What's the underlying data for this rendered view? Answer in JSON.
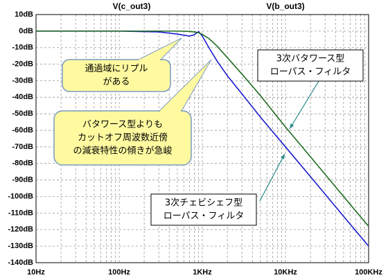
{
  "chart_data": {
    "type": "line",
    "xscale": "log",
    "grid": true,
    "x": [
      10,
      100,
      300,
      500,
      700,
      800,
      900,
      1000,
      1200,
      1500,
      2000,
      3000,
      5000,
      10000,
      20000,
      50000,
      100000
    ],
    "series": [
      {
        "name": "V(c_out3)",
        "color": "#1a1ad0",
        "values": [
          0,
          0,
          -0.5,
          -1.8,
          -3,
          -2.2,
          -0.3,
          -3,
          -10,
          -18,
          -27,
          -38,
          -52,
          -70,
          -88,
          -112,
          -130
        ]
      },
      {
        "name": "V(b_out3)",
        "color": "#1f6b1f",
        "values": [
          0,
          0,
          0,
          0,
          -0.2,
          -0.5,
          -1,
          -2,
          -4.5,
          -9,
          -16,
          -26,
          -39,
          -58,
          -76,
          -100,
          -118
        ]
      }
    ],
    "xlim": [
      10,
      100000
    ],
    "xticks": [
      {
        "value": 10,
        "label": "10Hz"
      },
      {
        "value": 100,
        "label": "100Hz"
      },
      {
        "value": 1000,
        "label": "1KHz"
      },
      {
        "value": 10000,
        "label": "10KHz"
      },
      {
        "value": 100000,
        "label": "100KHz"
      }
    ],
    "ylim": [
      -140,
      10
    ],
    "yticks": [
      {
        "value": 10,
        "label": "10dB"
      },
      {
        "value": 0,
        "label": "0dB"
      },
      {
        "value": -10,
        "label": "-10dB"
      },
      {
        "value": -20,
        "label": "-20dB"
      },
      {
        "value": -30,
        "label": "-30dB"
      },
      {
        "value": -40,
        "label": "-40dB"
      },
      {
        "value": -50,
        "label": "-50dB"
      },
      {
        "value": -60,
        "label": "-60dB"
      },
      {
        "value": -70,
        "label": "-70dB"
      },
      {
        "value": -80,
        "label": "-80dB"
      },
      {
        "value": -90,
        "label": "-90dB"
      },
      {
        "value": -100,
        "label": "-100dB"
      },
      {
        "value": -110,
        "label": "-110dB"
      },
      {
        "value": -120,
        "label": "-120dB"
      },
      {
        "value": -130,
        "label": "-130dB"
      },
      {
        "value": -140,
        "label": "-140dB"
      }
    ],
    "annotations": [
      {
        "lines": [
          "通過域にリプル",
          "がある"
        ]
      },
      {
        "lines": [
          "バタワース型よりも",
          "カットオフ周波数近傍",
          "の減衰特性の傾きが急峻"
        ]
      },
      {
        "lines": [
          "3次バタワース型",
          "ローパス・フィルタ"
        ]
      },
      {
        "lines": [
          "3次チェビシェフ型",
          "ローパス・フィルタ"
        ]
      }
    ]
  }
}
